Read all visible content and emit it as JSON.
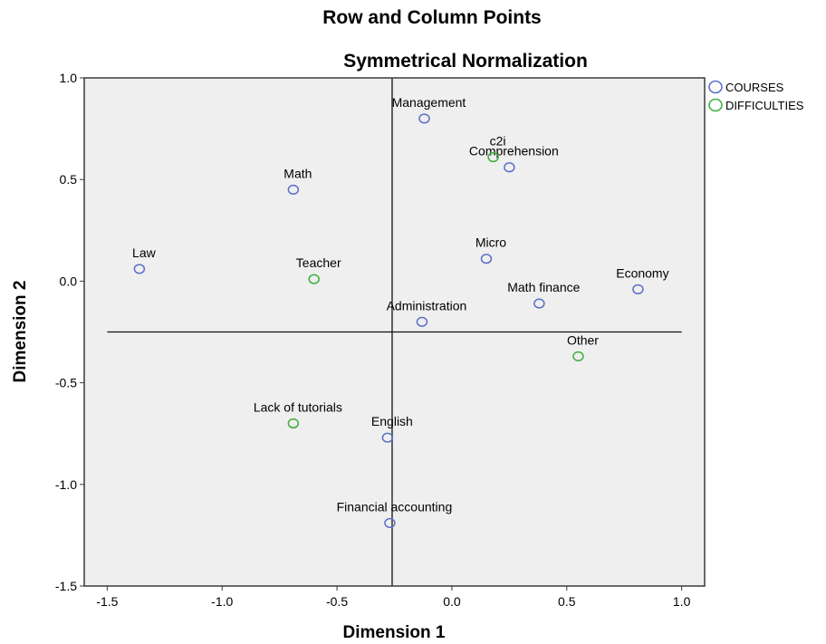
{
  "chart_data": {
    "type": "scatter",
    "title": "Row and Column Points",
    "subtitle": "Symmetrical Normalization",
    "xlabel": "Dimension 1",
    "ylabel": "Dimension 2",
    "xlim": [
      -1.6,
      1.1
    ],
    "ylim": [
      -1.5,
      1.0
    ],
    "xticks": [
      -1.5,
      -1.0,
      -0.5,
      0.0,
      0.5,
      1.0
    ],
    "xtick_labels": [
      "-1.5",
      "-1.0",
      "-0.5",
      "0.0",
      "0.5",
      "1.0"
    ],
    "yticks": [
      -1.5,
      -1.0,
      -0.5,
      0.0,
      0.5,
      1.0
    ],
    "ytick_labels": [
      "-1.5",
      "-1.0",
      "-0.5",
      "0.0",
      "0.5",
      "1.0"
    ],
    "reference_lines": {
      "x": -0.26,
      "y": -0.25,
      "x_range": [
        -1.5,
        1.0
      ]
    },
    "legend_position": "top-right-outside",
    "series": [
      {
        "name": "COURSES",
        "color": "#5b6fc9",
        "points": [
          {
            "label": "Management",
            "x": -0.12,
            "y": 0.8
          },
          {
            "label": "Comprehension",
            "x": 0.25,
            "y": 0.56
          },
          {
            "label": "Math",
            "x": -0.69,
            "y": 0.45
          },
          {
            "label": "Law",
            "x": -1.36,
            "y": 0.06
          },
          {
            "label": "Micro",
            "x": 0.15,
            "y": 0.11
          },
          {
            "label": "Economy",
            "x": 0.81,
            "y": -0.04
          },
          {
            "label": "Math finance",
            "x": 0.38,
            "y": -0.11
          },
          {
            "label": "Administration",
            "x": -0.13,
            "y": -0.2
          },
          {
            "label": "English",
            "x": -0.28,
            "y": -0.77
          },
          {
            "label": "Financial accounting",
            "x": -0.27,
            "y": -1.19
          }
        ]
      },
      {
        "name": "DIFFICULTIES",
        "color": "#3fae3f",
        "points": [
          {
            "label": "c2i",
            "x": 0.18,
            "y": 0.61
          },
          {
            "label": "Teacher",
            "x": -0.6,
            "y": 0.01
          },
          {
            "label": "Other",
            "x": 0.55,
            "y": -0.37
          },
          {
            "label": "Lack of tutorials",
            "x": -0.69,
            "y": -0.7
          }
        ]
      }
    ]
  }
}
